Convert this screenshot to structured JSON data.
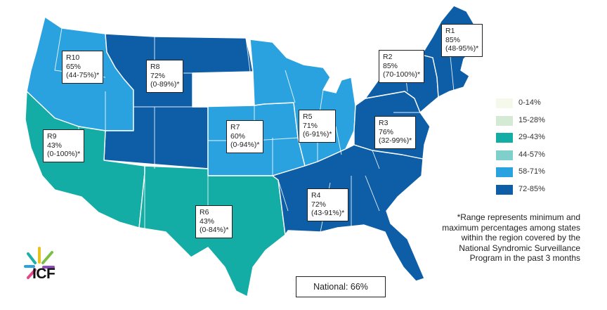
{
  "colors": {
    "bin_0_14": "#f5f9ec",
    "bin_15_28": "#d4ead4",
    "bin_29_43": "#14ada5",
    "bin_44_57": "#7fcfca",
    "bin_58_71": "#2ba2e0",
    "bin_72_85": "#0d5ea6",
    "border": "#ffffff"
  },
  "regions": [
    {
      "id": "R1",
      "label": "R1",
      "pct": "85%",
      "range": "(48-95%)*",
      "bin": "bin_72_85"
    },
    {
      "id": "R2",
      "label": "R2",
      "pct": "85%",
      "range": "(70-100%)*",
      "bin": "bin_72_85"
    },
    {
      "id": "R3",
      "label": "R3",
      "pct": "76%",
      "range": "(32-99%)*",
      "bin": "bin_72_85"
    },
    {
      "id": "R4",
      "label": "R4",
      "pct": "72%",
      "range": "(43-91%)*",
      "bin": "bin_72_85"
    },
    {
      "id": "R5",
      "label": "R5",
      "pct": "71%",
      "range": "(6-91%)*",
      "bin": "bin_58_71"
    },
    {
      "id": "R6",
      "label": "R6",
      "pct": "43%",
      "range": "(0-84%)*",
      "bin": "bin_29_43"
    },
    {
      "id": "R7",
      "label": "R7",
      "pct": "60%",
      "range": "(0-94%)*",
      "bin": "bin_58_71"
    },
    {
      "id": "R8",
      "label": "R8",
      "pct": "72%",
      "range": "(0-89%)*",
      "bin": "bin_72_85"
    },
    {
      "id": "R9",
      "label": "R9",
      "pct": "43%",
      "range": "(0-100%)*",
      "bin": "bin_29_43"
    },
    {
      "id": "R10",
      "label": "R10",
      "pct": "65%",
      "range": "(44-75%)*",
      "bin": "bin_58_71"
    }
  ],
  "legend": [
    {
      "label": "0-14%",
      "color": "#f5f9ec"
    },
    {
      "label": "15-28%",
      "color": "#d4ead4"
    },
    {
      "label": "29-43%",
      "color": "#14ada5"
    },
    {
      "label": "44-57%",
      "color": "#7fcfca"
    },
    {
      "label": "58-71%",
      "color": "#2ba2e0"
    },
    {
      "label": "72-85%",
      "color": "#0d5ea6"
    }
  ],
  "footnote": "*Range represents minimum and maximum percentages among states within the region covered by the National Syndromic Surveillance Program in the past 3 months",
  "national": "National: 66%",
  "logo": {
    "text": "ICF",
    "colors": [
      "#e8c21c",
      "#7ac143",
      "#1eb0a7",
      "#2ba2e0",
      "#e04a8a",
      "#8a4fb6"
    ]
  }
}
